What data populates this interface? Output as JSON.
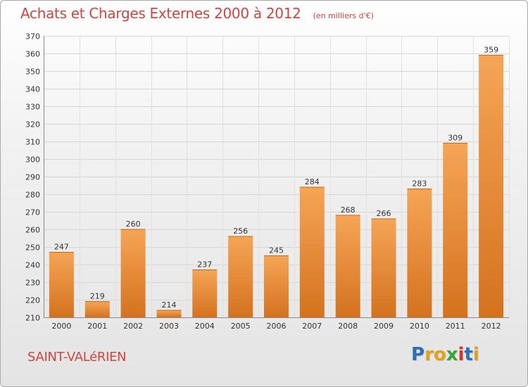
{
  "header": {
    "title": "Achats et Charges Externes 2000 à 2012",
    "subtitle": "(en milliers d'€)"
  },
  "footer": {
    "commune": "SAINT-VALéRIEN",
    "logo_letters": [
      "P",
      "r",
      "o",
      "x",
      "i",
      "t",
      "i"
    ],
    "logo_colors": [
      "#2a6fb8",
      "#e2a11b",
      "#e2a11b",
      "#3aa53a",
      "#d9322f",
      "#2a6fb8",
      "#e2a11b"
    ]
  },
  "chart_data": {
    "type": "bar",
    "title": "Achats et Charges Externes 2000 à 2012",
    "subtitle": "(en milliers d'€)",
    "categories": [
      "2000",
      "2001",
      "2002",
      "2003",
      "2004",
      "2005",
      "2006",
      "2007",
      "2008",
      "2009",
      "2010",
      "2011",
      "2012"
    ],
    "values": [
      247,
      219,
      260,
      214,
      237,
      256,
      245,
      284,
      268,
      266,
      283,
      309,
      359
    ],
    "ylim": [
      210,
      370
    ],
    "yticks": [
      210,
      220,
      230,
      240,
      250,
      260,
      270,
      280,
      290,
      300,
      310,
      320,
      330,
      340,
      350,
      360,
      370
    ],
    "grid": true,
    "bar_color_light": "#f5a556",
    "bar_color_dark": "#d4721e"
  }
}
